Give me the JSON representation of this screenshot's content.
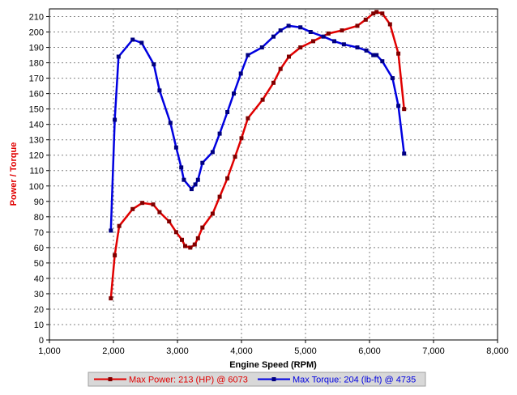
{
  "chart_data": {
    "type": "line",
    "xlabel": "Engine Speed (RPM)",
    "ylabel": "Power / Torque",
    "xlim": [
      1000,
      8000
    ],
    "ylim": [
      0,
      215
    ],
    "x_ticks": [
      1000,
      2000,
      3000,
      4000,
      5000,
      6000,
      7000,
      8000
    ],
    "x_tick_labels": [
      "1,000",
      "2,000",
      "3,000",
      "4,000",
      "5,000",
      "6,000",
      "7,000",
      "8,000"
    ],
    "y_ticks": [
      0,
      10,
      20,
      30,
      40,
      50,
      60,
      70,
      80,
      90,
      100,
      110,
      120,
      130,
      140,
      150,
      160,
      170,
      180,
      190,
      200,
      210
    ],
    "grid": true,
    "legend_position": "bottom",
    "series": [
      {
        "name": "Max Power: 213 (HP) @ 6073",
        "color": "#e00000",
        "points": [
          [
            1960,
            27
          ],
          [
            2020,
            55
          ],
          [
            2090,
            74
          ],
          [
            2300,
            85
          ],
          [
            2450,
            89
          ],
          [
            2620,
            88
          ],
          [
            2720,
            83
          ],
          [
            2870,
            77
          ],
          [
            2980,
            70
          ],
          [
            3070,
            65
          ],
          [
            3120,
            61
          ],
          [
            3200,
            60
          ],
          [
            3270,
            62
          ],
          [
            3320,
            66
          ],
          [
            3390,
            73
          ],
          [
            3550,
            82
          ],
          [
            3660,
            93
          ],
          [
            3780,
            105
          ],
          [
            3900,
            119
          ],
          [
            4000,
            131
          ],
          [
            4100,
            144
          ],
          [
            4330,
            156
          ],
          [
            4500,
            167
          ],
          [
            4610,
            176
          ],
          [
            4740,
            184
          ],
          [
            4920,
            190
          ],
          [
            5120,
            194
          ],
          [
            5360,
            199
          ],
          [
            5570,
            201
          ],
          [
            5810,
            204
          ],
          [
            5940,
            208
          ],
          [
            6060,
            212
          ],
          [
            6110,
            213
          ],
          [
            6200,
            212
          ],
          [
            6320,
            205
          ],
          [
            6450,
            186
          ],
          [
            6540,
            150
          ]
        ]
      },
      {
        "name": "Max Torque: 204 (lb-ft) @ 4735",
        "color": "#0000e0",
        "points": [
          [
            1960,
            71
          ],
          [
            2020,
            143
          ],
          [
            2080,
            184
          ],
          [
            2300,
            195
          ],
          [
            2440,
            193
          ],
          [
            2630,
            179
          ],
          [
            2720,
            162
          ],
          [
            2890,
            141
          ],
          [
            2980,
            125
          ],
          [
            3060,
            112
          ],
          [
            3100,
            104
          ],
          [
            3220,
            98
          ],
          [
            3280,
            101
          ],
          [
            3320,
            104
          ],
          [
            3390,
            115
          ],
          [
            3550,
            122
          ],
          [
            3660,
            134
          ],
          [
            3780,
            148
          ],
          [
            3880,
            160
          ],
          [
            3990,
            173
          ],
          [
            4100,
            185
          ],
          [
            4320,
            190
          ],
          [
            4500,
            197
          ],
          [
            4610,
            201
          ],
          [
            4735,
            204
          ],
          [
            4920,
            203
          ],
          [
            5080,
            200
          ],
          [
            5280,
            197
          ],
          [
            5450,
            194
          ],
          [
            5600,
            192
          ],
          [
            5810,
            190
          ],
          [
            5950,
            188
          ],
          [
            6060,
            185
          ],
          [
            6110,
            185
          ],
          [
            6200,
            181
          ],
          [
            6360,
            170
          ],
          [
            6450,
            152
          ],
          [
            6540,
            121
          ]
        ]
      }
    ]
  }
}
